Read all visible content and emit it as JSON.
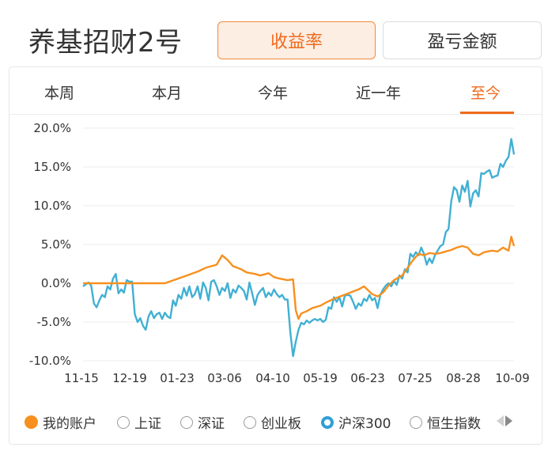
{
  "header": {
    "title": "养基招财2号",
    "mode_active": "收益率",
    "mode_inactive": "盈亏金额"
  },
  "tabs": [
    {
      "label": "本周",
      "active": false
    },
    {
      "label": "本月",
      "active": false
    },
    {
      "label": "今年",
      "active": false
    },
    {
      "label": "近一年",
      "active": false
    },
    {
      "label": "至今",
      "active": true
    }
  ],
  "legend": [
    {
      "label": "我的账户",
      "state": "filled",
      "color": "#f7901e"
    },
    {
      "label": "上证",
      "state": "off"
    },
    {
      "label": "深证",
      "state": "off"
    },
    {
      "label": "创业板",
      "state": "off"
    },
    {
      "label": "沪深300",
      "state": "ring",
      "color": "#2e9fd6"
    },
    {
      "label": "恒生指数",
      "state": "off"
    }
  ],
  "colors": {
    "accent": "#f06a1c",
    "my_account": "#f7901e",
    "hs300": "#41b0d3",
    "grid": "#ececec"
  },
  "chart_data": {
    "type": "line",
    "x_ticks": [
      "11-15",
      "12-19",
      "01-23",
      "03-06",
      "04-10",
      "05-19",
      "06-23",
      "07-25",
      "08-28",
      "10-09"
    ],
    "y_ticks": [
      "20.0%",
      "15.0%",
      "10.0%",
      "5.0%",
      "0.0%",
      "-5.0%",
      "-10.0%"
    ],
    "ylim": [
      -10,
      20
    ],
    "grid": true,
    "series": [
      {
        "name": "我的账户",
        "color": "#f7901e",
        "values": [
          [
            0,
            0
          ],
          [
            10,
            0
          ],
          [
            19,
            0
          ],
          [
            25,
            0
          ],
          [
            30,
            0
          ],
          [
            34,
            0.5
          ],
          [
            38,
            1
          ],
          [
            42,
            1.5
          ],
          [
            45,
            2
          ],
          [
            49,
            2.4
          ],
          [
            51,
            3.6
          ],
          [
            53,
            3
          ],
          [
            55,
            2.2
          ],
          [
            58,
            1.8
          ],
          [
            60,
            1.4
          ],
          [
            63,
            1.2
          ],
          [
            65,
            1
          ],
          [
            68,
            1.3
          ],
          [
            70,
            0.8
          ],
          [
            72,
            0.6
          ],
          [
            75,
            0.4
          ],
          [
            77,
            0.5
          ],
          [
            78,
            -3.5
          ],
          [
            79,
            -4.6
          ],
          [
            80,
            -3.9
          ],
          [
            82,
            -3.6
          ],
          [
            84,
            -3.2
          ],
          [
            87,
            -2.9
          ],
          [
            89,
            -2.5
          ],
          [
            92,
            -2
          ],
          [
            95,
            -1.6
          ],
          [
            98,
            -1.2
          ],
          [
            101,
            -0.8
          ],
          [
            103,
            -0.4
          ],
          [
            106,
            -1.4
          ],
          [
            108,
            -1.7
          ],
          [
            110,
            -1.2
          ],
          [
            112,
            -0.3
          ],
          [
            114,
            0.4
          ],
          [
            117,
            1
          ],
          [
            119,
            2
          ],
          [
            121,
            3
          ],
          [
            123,
            3.8
          ],
          [
            125,
            3.6
          ],
          [
            127,
            3.9
          ],
          [
            129,
            3.8
          ],
          [
            131,
            3.9
          ],
          [
            133,
            4.1
          ],
          [
            135,
            4.3
          ],
          [
            137,
            4.6
          ],
          [
            139,
            4.8
          ],
          [
            141,
            4.6
          ],
          [
            143,
            3.8
          ],
          [
            145,
            3.6
          ],
          [
            147,
            4
          ],
          [
            150,
            4.2
          ],
          [
            152,
            4.1
          ],
          [
            154,
            4.6
          ],
          [
            156,
            4.2
          ],
          [
            157,
            6
          ],
          [
            158,
            4.8
          ]
        ]
      },
      {
        "name": "沪深300",
        "color": "#41b0d3",
        "values": [
          [
            0,
            -0.4
          ],
          [
            2,
            0.1
          ],
          [
            3,
            -0.3
          ],
          [
            4,
            -2.6
          ],
          [
            5,
            -3.1
          ],
          [
            6,
            -2.2
          ],
          [
            7,
            -1.5
          ],
          [
            8,
            -1.8
          ],
          [
            9,
            -0.4
          ],
          [
            10,
            -0.8
          ],
          [
            11,
            0.6
          ],
          [
            12,
            1.2
          ],
          [
            13,
            -1.3
          ],
          [
            14,
            -0.8
          ],
          [
            15,
            -1.2
          ],
          [
            16,
            0.4
          ],
          [
            17,
            0.2
          ],
          [
            18,
            0.2
          ],
          [
            19,
            -4
          ],
          [
            20,
            -5
          ],
          [
            21,
            -4.5
          ],
          [
            22,
            -5.5
          ],
          [
            23,
            -6
          ],
          [
            24,
            -4.3
          ],
          [
            25,
            -3.6
          ],
          [
            26,
            -4.5
          ],
          [
            27,
            -4
          ],
          [
            28,
            -3.8
          ],
          [
            29,
            -4.6
          ],
          [
            30,
            -3.8
          ],
          [
            31,
            -4.3
          ],
          [
            32,
            -4.5
          ],
          [
            33,
            -2.2
          ],
          [
            34,
            -2.9
          ],
          [
            35,
            -1.5
          ],
          [
            36,
            -2
          ],
          [
            37,
            -0.6
          ],
          [
            38,
            -1.6
          ],
          [
            39,
            -0.4
          ],
          [
            40,
            -1.8
          ],
          [
            41,
            -1.4
          ],
          [
            42,
            -0.4
          ],
          [
            43,
            -2
          ],
          [
            44,
            0.1
          ],
          [
            45,
            -0.6
          ],
          [
            46,
            -2.2
          ],
          [
            47,
            0.2
          ],
          [
            48,
            0.4
          ],
          [
            49,
            -0.4
          ],
          [
            50,
            -1.5
          ],
          [
            51,
            -0.6
          ],
          [
            52,
            -1
          ],
          [
            53,
            0
          ],
          [
            54,
            -1.9
          ],
          [
            55,
            -0.8
          ],
          [
            56,
            -1.2
          ],
          [
            57,
            -0.3
          ],
          [
            58,
            -0.6
          ],
          [
            59,
            -1
          ],
          [
            60,
            -2.1
          ],
          [
            61,
            0.1
          ],
          [
            62,
            -1.3
          ],
          [
            63,
            -2.8
          ],
          [
            64,
            -1.5
          ],
          [
            65,
            -1
          ],
          [
            66,
            -0.6
          ],
          [
            67,
            -1.8
          ],
          [
            68,
            -1.2
          ],
          [
            69,
            -1.6
          ],
          [
            70,
            -0.8
          ],
          [
            71,
            -1.4
          ],
          [
            72,
            -1.8
          ],
          [
            73,
            -1.5
          ],
          [
            74,
            -2.1
          ],
          [
            75,
            -2.1
          ],
          [
            76,
            -6.4
          ],
          [
            77,
            -9.4
          ],
          [
            78,
            -7.5
          ],
          [
            79,
            -6
          ],
          [
            80,
            -5.1
          ],
          [
            81,
            -5.3
          ],
          [
            82,
            -4.8
          ],
          [
            83,
            -5.1
          ],
          [
            84,
            -4.8
          ],
          [
            85,
            -4.6
          ],
          [
            86,
            -4.8
          ],
          [
            87,
            -4.6
          ],
          [
            88,
            -5
          ],
          [
            89,
            -4.7
          ],
          [
            90,
            -3.1
          ],
          [
            91,
            -3.3
          ],
          [
            92,
            -1.8
          ],
          [
            93,
            -2.4
          ],
          [
            94,
            -1.8
          ],
          [
            95,
            -3
          ],
          [
            96,
            -1.6
          ],
          [
            97,
            -1.5
          ],
          [
            98,
            -1.6
          ],
          [
            99,
            -2.4
          ],
          [
            100,
            -3.3
          ],
          [
            101,
            -2.6
          ],
          [
            102,
            -2.9
          ],
          [
            103,
            -2
          ],
          [
            104,
            -2.3
          ],
          [
            105,
            -1.5
          ],
          [
            106,
            -2.2
          ],
          [
            107,
            -1.9
          ],
          [
            108,
            -3.2
          ],
          [
            109,
            -1.5
          ],
          [
            110,
            -0.8
          ],
          [
            111,
            -0.3
          ],
          [
            112,
            0
          ],
          [
            113,
            -0.4
          ],
          [
            114,
            0.3
          ],
          [
            115,
            -0.2
          ],
          [
            116,
            1
          ],
          [
            117,
            0.6
          ],
          [
            118,
            1.8
          ],
          [
            119,
            1.4
          ],
          [
            120,
            3.8
          ],
          [
            121,
            3.4
          ],
          [
            122,
            4
          ],
          [
            123,
            3.6
          ],
          [
            124,
            4.6
          ],
          [
            125,
            3.8
          ],
          [
            126,
            2.4
          ],
          [
            127,
            3.2
          ],
          [
            128,
            2.6
          ],
          [
            129,
            3.6
          ],
          [
            130,
            4.2
          ],
          [
            131,
            4.8
          ],
          [
            132,
            5
          ],
          [
            133,
            6.6
          ],
          [
            134,
            7
          ],
          [
            135,
            10.6
          ],
          [
            136,
            12.4
          ],
          [
            137,
            12
          ],
          [
            138,
            10.5
          ],
          [
            139,
            12.6
          ],
          [
            140,
            11.8
          ],
          [
            141,
            13.2
          ],
          [
            142,
            9.9
          ],
          [
            143,
            11.6
          ],
          [
            144,
            12
          ],
          [
            145,
            11.2
          ],
          [
            146,
            14.2
          ],
          [
            147,
            14.1
          ],
          [
            148,
            14.4
          ],
          [
            149,
            14.6
          ],
          [
            150,
            13.6
          ],
          [
            151,
            13.8
          ],
          [
            152,
            13.9
          ],
          [
            153,
            15.4
          ],
          [
            154,
            15
          ],
          [
            155,
            15.8
          ],
          [
            156,
            16.3
          ],
          [
            157,
            18.6
          ],
          [
            158,
            16.6
          ]
        ]
      }
    ]
  }
}
